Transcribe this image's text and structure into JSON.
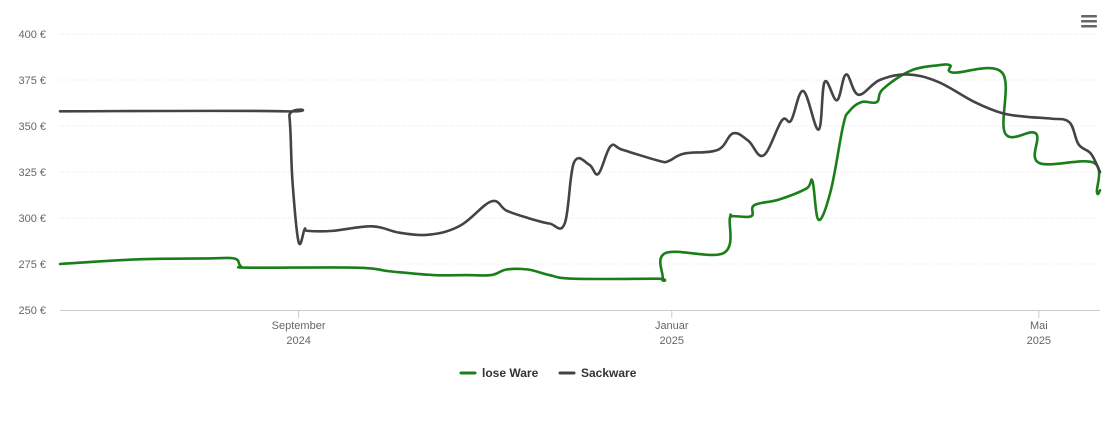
{
  "chart_data": {
    "type": "line",
    "title": "",
    "xlabel": "",
    "ylabel": "",
    "ylim": [
      250,
      400
    ],
    "xlim": [
      "2024-06-15",
      "2025-05-21"
    ],
    "grid": true,
    "legend_position": "bottom-center",
    "y_ticks": [
      {
        "value": 250,
        "label": "250 €"
      },
      {
        "value": 275,
        "label": "275 €"
      },
      {
        "value": 300,
        "label": "300 €"
      },
      {
        "value": 325,
        "label": "325 €"
      },
      {
        "value": 350,
        "label": "350 €"
      },
      {
        "value": 375,
        "label": "375 €"
      },
      {
        "value": 400,
        "label": "400 €"
      }
    ],
    "x_ticks": [
      {
        "date": "2024-09-01",
        "line1": "September",
        "line2": "2024"
      },
      {
        "date": "2025-01-01",
        "line1": "Januar",
        "line2": "2025"
      },
      {
        "date": "2025-05-01",
        "line1": "Mai",
        "line2": "2025"
      }
    ],
    "series": [
      {
        "name": "lose Ware",
        "color": "#1a7f1a",
        "points": [
          [
            "2024-06-15",
            275
          ],
          [
            "2024-07-10",
            277.5
          ],
          [
            "2024-08-02",
            278
          ],
          [
            "2024-08-11",
            278
          ],
          [
            "2024-08-13",
            274
          ],
          [
            "2024-08-16",
            273
          ],
          [
            "2024-09-20",
            273
          ],
          [
            "2024-10-01",
            271
          ],
          [
            "2024-10-15",
            269
          ],
          [
            "2024-10-26",
            269
          ],
          [
            "2024-11-03",
            269
          ],
          [
            "2024-11-08",
            272
          ],
          [
            "2024-11-15",
            272
          ],
          [
            "2024-11-22",
            269
          ],
          [
            "2024-11-30",
            267
          ],
          [
            "2024-12-27",
            267
          ],
          [
            "2024-12-29",
            267
          ],
          [
            "2024-12-30",
            281
          ],
          [
            "2025-01-18",
            281
          ],
          [
            "2025-01-20",
            300
          ],
          [
            "2025-01-21",
            301
          ],
          [
            "2025-01-27",
            301
          ],
          [
            "2025-01-28",
            307
          ],
          [
            "2025-02-05",
            310
          ],
          [
            "2025-02-14",
            316
          ],
          [
            "2025-02-16",
            320
          ],
          [
            "2025-02-18",
            299
          ],
          [
            "2025-02-22",
            315
          ],
          [
            "2025-02-26",
            350
          ],
          [
            "2025-02-28",
            358
          ],
          [
            "2025-03-04",
            363
          ],
          [
            "2025-03-09",
            363
          ],
          [
            "2025-03-11",
            370
          ],
          [
            "2025-03-20",
            380
          ],
          [
            "2025-03-29",
            383
          ],
          [
            "2025-04-02",
            383
          ],
          [
            "2025-04-03",
            379
          ],
          [
            "2025-04-19",
            379
          ],
          [
            "2025-04-20",
            346
          ],
          [
            "2025-04-30",
            346
          ],
          [
            "2025-05-01",
            330
          ],
          [
            "2025-05-19",
            330
          ],
          [
            "2025-05-20",
            314
          ],
          [
            "2025-05-21",
            315
          ]
        ]
      },
      {
        "name": "Sackware",
        "color": "#444448",
        "points": [
          [
            "2024-06-15",
            358
          ],
          [
            "2024-08-27",
            358
          ],
          [
            "2024-08-29",
            355
          ],
          [
            "2024-08-30",
            320
          ],
          [
            "2024-09-01",
            287
          ],
          [
            "2024-09-03",
            294
          ],
          [
            "2024-09-04",
            293
          ],
          [
            "2024-09-12",
            293
          ],
          [
            "2024-09-25",
            295.5
          ],
          [
            "2024-10-04",
            292
          ],
          [
            "2024-10-14",
            291
          ],
          [
            "2024-10-24",
            296
          ],
          [
            "2024-11-03",
            309
          ],
          [
            "2024-11-08",
            304
          ],
          [
            "2024-11-15",
            300
          ],
          [
            "2024-11-22",
            297
          ],
          [
            "2024-11-27",
            297
          ],
          [
            "2024-11-30",
            330
          ],
          [
            "2024-12-05",
            329
          ],
          [
            "2024-12-08",
            324
          ],
          [
            "2024-12-12",
            339
          ],
          [
            "2024-12-16",
            337
          ],
          [
            "2024-12-28",
            331
          ],
          [
            "2024-12-31",
            331
          ],
          [
            "2025-01-05",
            335
          ],
          [
            "2025-01-16",
            337
          ],
          [
            "2025-01-21",
            346
          ],
          [
            "2025-01-26",
            342
          ],
          [
            "2025-01-31",
            334
          ],
          [
            "2025-02-06",
            353
          ],
          [
            "2025-02-09",
            353
          ],
          [
            "2025-02-13",
            369
          ],
          [
            "2025-02-18",
            348
          ],
          [
            "2025-02-20",
            374
          ],
          [
            "2025-02-24",
            364
          ],
          [
            "2025-02-27",
            378
          ],
          [
            "2025-03-03",
            367
          ],
          [
            "2025-03-10",
            375
          ],
          [
            "2025-03-19",
            378
          ],
          [
            "2025-03-29",
            374
          ],
          [
            "2025-04-10",
            363
          ],
          [
            "2025-04-19",
            357
          ],
          [
            "2025-04-27",
            355
          ],
          [
            "2025-05-05",
            354
          ],
          [
            "2025-05-11",
            352
          ],
          [
            "2025-05-14",
            340
          ],
          [
            "2025-05-18",
            335
          ],
          [
            "2025-05-21",
            325
          ]
        ]
      }
    ]
  },
  "icons": {
    "menu": "hamburger-menu-icon"
  }
}
